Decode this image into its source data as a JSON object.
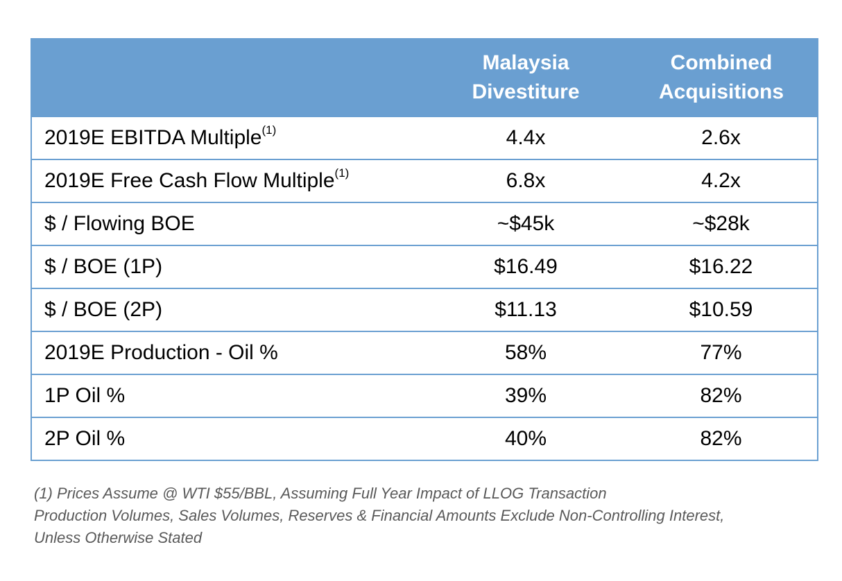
{
  "header": {
    "col_label": "",
    "col1_line1": "Malaysia",
    "col1_line2": "Divestiture",
    "col2_line1": "Combined",
    "col2_line2": "Acquisitions"
  },
  "rows": [
    {
      "label": "2019E EBITDA Multiple",
      "sup": "(1)",
      "malaysia": "4.4x",
      "combined": "2.6x"
    },
    {
      "label": "2019E Free Cash Flow Multiple",
      "sup": "(1)",
      "malaysia": "6.8x",
      "combined": "4.2x"
    },
    {
      "label": "$ / Flowing BOE",
      "sup": "",
      "malaysia": "~$45k",
      "combined": "~$28k"
    },
    {
      "label": "$ / BOE (1P)",
      "sup": "",
      "malaysia": "$16.49",
      "combined": "$16.22"
    },
    {
      "label": "$ / BOE (2P)",
      "sup": "",
      "malaysia": "$11.13",
      "combined": "$10.59"
    },
    {
      "label": "2019E Production - Oil %",
      "sup": "",
      "malaysia": "58%",
      "combined": "77%"
    },
    {
      "label": "1P Oil %",
      "sup": "",
      "malaysia": "39%",
      "combined": "82%"
    },
    {
      "label": "2P Oil %",
      "sup": "",
      "malaysia": "40%",
      "combined": "82%"
    }
  ],
  "footnotes": [
    "(1) Prices Assume @ WTI $55/BBL, Assuming Full Year Impact of LLOG Transaction",
    "Production Volumes, Sales Volumes, Reserves & Financial Amounts Exclude Non-Controlling Interest,",
    "Unless Otherwise Stated"
  ],
  "colors": {
    "header_bg": "#6a9fd1",
    "border": "#6a9fd1",
    "footnote_text": "#595959"
  }
}
